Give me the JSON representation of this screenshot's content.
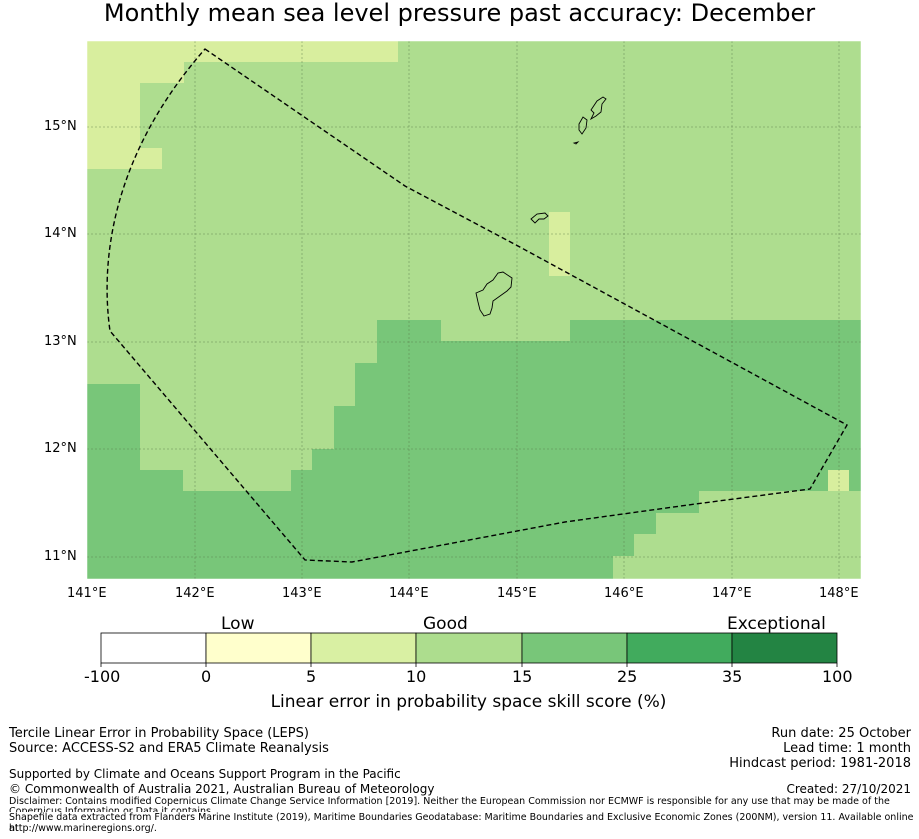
{
  "title": "Monthly mean sea level pressure past accuracy: December",
  "map": {
    "lat_labels": [
      "15°N",
      "14°N",
      "13°N",
      "12°N",
      "11°N"
    ],
    "lon_labels": [
      "141°E",
      "142°E",
      "143°E",
      "144°E",
      "145°E",
      "146°E",
      "147°E",
      "148°E"
    ],
    "region": "Guam / Northern Mariana Islands EEZ outline",
    "colors": {
      "lightest": "#d8ee9e",
      "light": "#aedd8f",
      "medium": "#78c679",
      "coast": "#000000",
      "outline": "#000000"
    }
  },
  "colorbar": {
    "category_labels": {
      "low": "Low",
      "good": "Good",
      "exceptional": "Exceptional"
    },
    "ticks": [
      "-100",
      "0",
      "5",
      "10",
      "15",
      "25",
      "35",
      "100"
    ],
    "colors": [
      "#ffffff",
      "#ffffcc",
      "#d9f0a3",
      "#addd8e",
      "#78c679",
      "#41ab5d",
      "#238443"
    ],
    "title": "Linear error in probability space skill score (%)"
  },
  "info": {
    "method": "Tercile Linear Error in Probability Space (LEPS)",
    "source": "Source: ACCESS-S2 and ERA5 Climate Reanalysis",
    "run_date": "Run date: 25 October",
    "lead_time": "Lead time: 1 month",
    "hindcast": "Hindcast period: 1981-2018",
    "support": "Supported by Climate and Oceans Support Program in the Pacific",
    "copyright": "© Commonwealth of Australia 2021, Australian Bureau of Meteorology",
    "created": "Created: 27/10/2021",
    "disclaimer_1": "Disclaimer: Contains modified Copernicus Climate Change Service Information [2019]. Neither the European Commission nor ECMWF is responsible for any use that may be made of the",
    "disclaimer_2": "Copernicus Information or Data it contains.",
    "shapefile_1": "Shapefile data extracted from Flanders Marine Institute (2019), Maritime Boundaries Geodatabase: Maritime Boundaries and Exclusive Economic Zones (200NM), version 11. Available online at",
    "shapefile_2": "http://www.marineregions.org/."
  }
}
